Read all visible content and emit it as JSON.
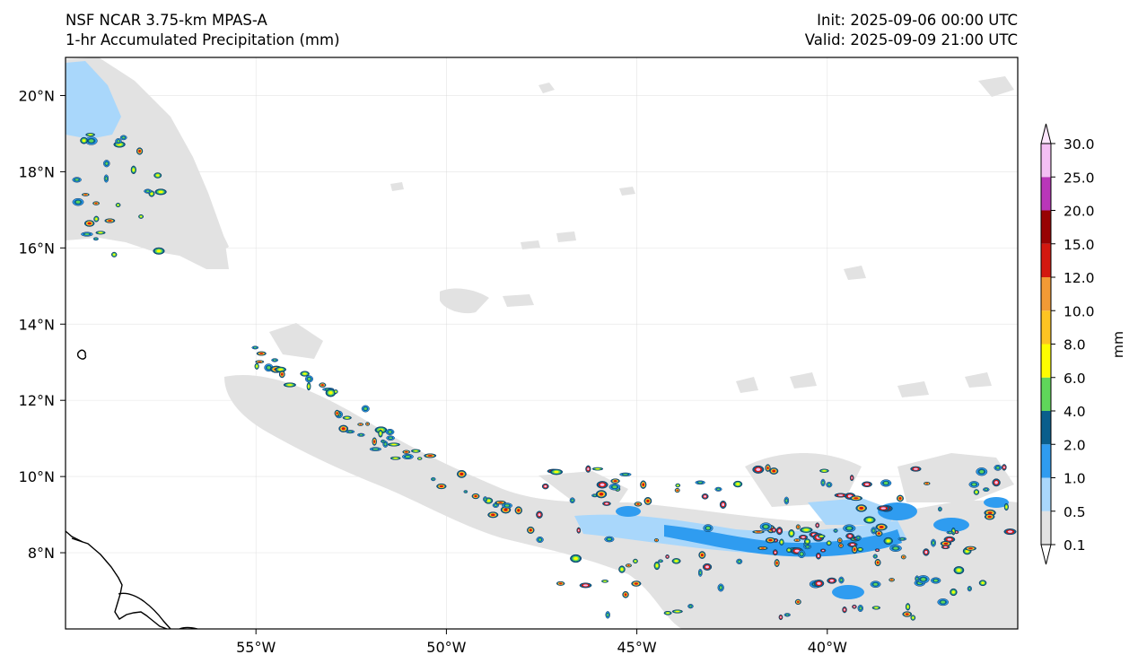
{
  "header": {
    "model": "NSF NCAR 3.75-km MPAS-A",
    "field": "1-hr Accumulated Precipitation (mm)",
    "init": "Init: 2025-09-06 00:00 UTC",
    "valid": "Valid: 2025-09-09 21:00 UTC"
  },
  "map": {
    "projection": "PlateCarree",
    "lon_range": [
      -60,
      -35
    ],
    "lat_range": [
      6,
      21
    ],
    "gridlines": true,
    "lon_ticks": [
      "55°W",
      "50°W",
      "45°W",
      "40°W"
    ],
    "lat_ticks": [
      "20°N",
      "18°N",
      "16°N",
      "14°N",
      "12°N",
      "10°N",
      "8°N"
    ]
  },
  "colorbar": {
    "label": "mm",
    "extend": "both",
    "levels": [
      "0.1",
      "0.5",
      "1.0",
      "2.0",
      "4.0",
      "6.0",
      "8.0",
      "10.0",
      "12.0",
      "15.0",
      "20.0",
      "25.0",
      "30.0"
    ],
    "colors": [
      "#e2e2e2",
      "#a9d7fb",
      "#2f9cf0",
      "#0a5e8c",
      "#5fd65a",
      "#fdfd00",
      "#fdc422",
      "#f29a35",
      "#d3180f",
      "#980303",
      "#b936b9",
      "#f4bff4"
    ],
    "under_color": "#ffffff",
    "over_color": "#fde6fd"
  }
}
